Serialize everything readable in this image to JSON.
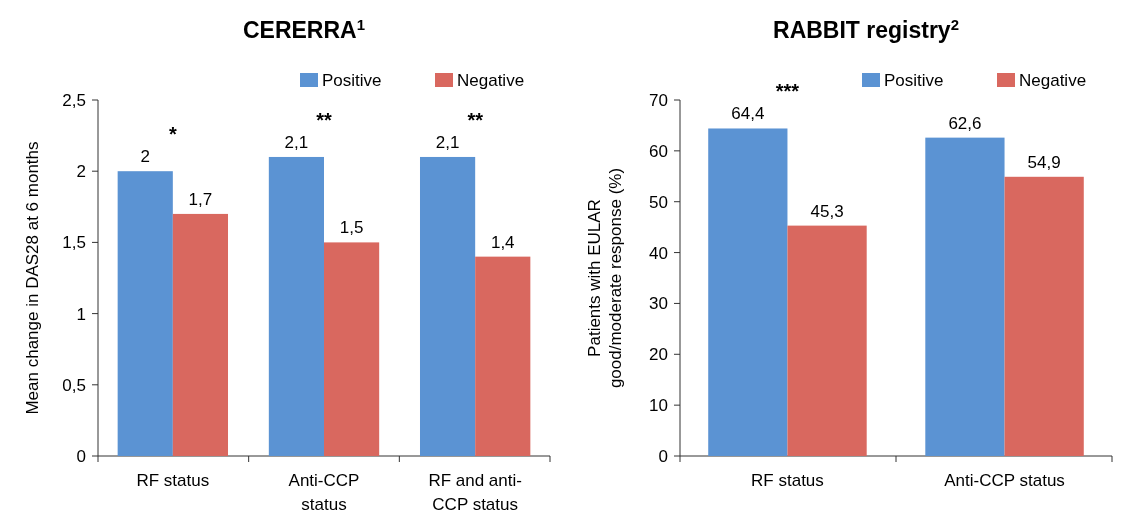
{
  "chart_data": [
    {
      "type": "bar",
      "title": "CERERRA$^{1}$",
      "ylabel": "Mean change in DAS28 at 6 months",
      "categories": [
        "RF status",
        "Anti-CCP status",
        "RF and anti-CCP status"
      ],
      "series": [
        {
          "name": "Positive",
          "color": "#5b93d3",
          "values": [
            2,
            2.1,
            2.1
          ],
          "value_labels": [
            "2",
            "2,1",
            "2,1"
          ]
        },
        {
          "name": "Negative",
          "color": "#d9685f",
          "values": [
            1.7,
            1.5,
            1.4
          ],
          "value_labels": [
            "1,7",
            "1,5",
            "1,4"
          ]
        }
      ],
      "ylim": [
        0,
        2.5
      ],
      "yticks": [
        0,
        {
          "value": 0.5,
          "label": "0,5"
        },
        1,
        {
          "value": 1.5,
          "label": "1,5"
        },
        2,
        {
          "value": 2.5,
          "label": "2,5"
        }
      ],
      "legend": "top right",
      "grid": false,
      "annotations": [
        "*",
        "**",
        "**"
      ]
    },
    {
      "type": "bar",
      "title": "RABBIT registry$^{2}$",
      "ylabel": "Patients with EULAR good/moderate response (%)",
      "categories": [
        "RF status",
        "Anti-CCP status"
      ],
      "series": [
        {
          "name": "Positive",
          "color": "#5b93d3",
          "values": [
            64.4,
            62.6
          ],
          "value_labels": [
            "64,4",
            "62,6"
          ]
        },
        {
          "name": "Negative",
          "color": "#d9685f",
          "values": [
            45.3,
            54.9
          ],
          "value_labels": [
            "45,3",
            "54,9"
          ]
        }
      ],
      "ylim": [
        0,
        70
      ],
      "yticks": [
        0,
        10,
        20,
        30,
        40,
        50,
        60,
        70
      ],
      "legend": "top right",
      "grid": false,
      "annotations": [
        "***"
      ]
    }
  ]
}
